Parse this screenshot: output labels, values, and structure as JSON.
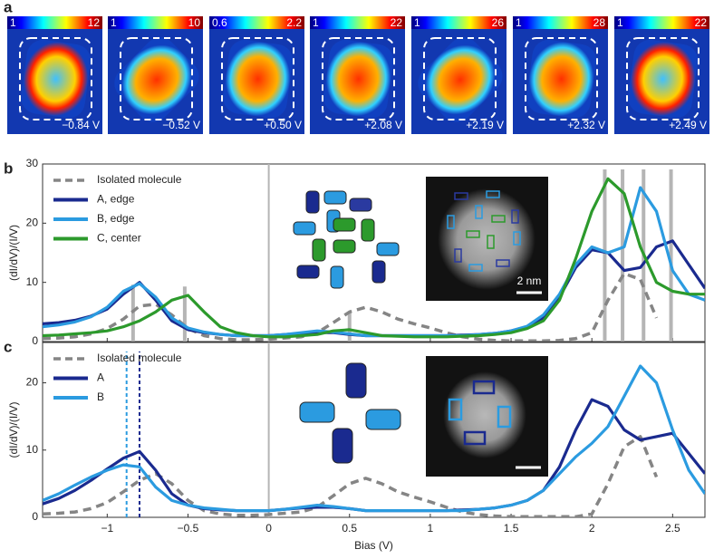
{
  "panel_a": {
    "letter": "a",
    "maps": [
      {
        "cbar_min": 1,
        "cbar_max": 12,
        "bias": -0.84,
        "bias_label": "−0.84 V"
      },
      {
        "cbar_min": 1,
        "cbar_max": 10,
        "bias": -0.52,
        "bias_label": "−0.52 V"
      },
      {
        "cbar_min": 0.6,
        "cbar_max": 2.2,
        "bias": 0.5,
        "bias_label": "+0.50 V"
      },
      {
        "cbar_min": 1,
        "cbar_max": 22,
        "bias": 2.08,
        "bias_label": "+2.08 V"
      },
      {
        "cbar_min": 1,
        "cbar_max": 26,
        "bias": 2.19,
        "bias_label": "+2.19 V"
      },
      {
        "cbar_min": 1,
        "cbar_max": 28,
        "bias": 2.32,
        "bias_label": "+2.32 V"
      },
      {
        "cbar_min": 1,
        "cbar_max": 22,
        "bias": 2.49,
        "bias_label": "+2.49 V"
      }
    ]
  },
  "insets": {
    "scale_label": "2 nm"
  },
  "chart_data": [
    {
      "type": "line",
      "letter": "b",
      "ylabel": "(dI/dV)/(I/V)",
      "legend": "upper left",
      "x": [
        -1.4,
        -1.3,
        -1.2,
        -1.1,
        -1.0,
        -0.9,
        -0.8,
        -0.7,
        -0.6,
        -0.5,
        -0.4,
        -0.3,
        -0.2,
        -0.1,
        0,
        0.1,
        0.2,
        0.3,
        0.4,
        0.5,
        0.6,
        0.7,
        0.8,
        0.9,
        1.0,
        1.1,
        1.2,
        1.3,
        1.4,
        1.5,
        1.6,
        1.7,
        1.8,
        1.9,
        2.0,
        2.1,
        2.2,
        2.3,
        2.4,
        2.5,
        2.6,
        2.7
      ],
      "xlim": [
        -1.4,
        2.7
      ],
      "xticks": [
        -1,
        -0.5,
        0,
        0.5,
        1,
        1.5,
        2,
        2.5
      ],
      "ylim": [
        0,
        30
      ],
      "yticks": [
        0,
        10,
        20,
        30
      ],
      "series": [
        {
          "name": "Isolated molecule",
          "color": "#858585",
          "dashed": true,
          "values": [
            0.5,
            0.6,
            0.8,
            1.3,
            2.2,
            3.8,
            6.0,
            6.3,
            4.5,
            2.2,
            1.0,
            0.5,
            0.3,
            0.3,
            0.4,
            0.6,
            0.8,
            1.5,
            3.2,
            5.0,
            5.8,
            5.0,
            3.8,
            3.0,
            2.3,
            1.5,
            0.8,
            0.4,
            0.2,
            0.1,
            0.1,
            0.1,
            0.2,
            0.5,
            1.5,
            7.0,
            11.5,
            10.5,
            4.0,
            null,
            null,
            null
          ]
        },
        {
          "name": "A, edge",
          "color": "#1a2a8f",
          "values": [
            3.0,
            3.2,
            3.6,
            4.3,
            5.5,
            8.0,
            10.0,
            7.0,
            3.5,
            2.0,
            1.5,
            1.2,
            1.0,
            1.0,
            1.0,
            1.2,
            1.4,
            1.5,
            1.5,
            1.2,
            1.0,
            1.0,
            1.0,
            1.0,
            1.0,
            1.0,
            1.1,
            1.2,
            1.4,
            1.8,
            2.5,
            4.0,
            7.5,
            12.5,
            15.5,
            15.0,
            12.0,
            12.5,
            16.0,
            17.0,
            13.0,
            9.0
          ]
        },
        {
          "name": "B, edge",
          "color": "#2b9be0",
          "values": [
            2.5,
            2.8,
            3.3,
            4.2,
            5.8,
            8.5,
            9.8,
            7.5,
            4.0,
            2.3,
            1.6,
            1.2,
            1.0,
            1.0,
            1.0,
            1.2,
            1.5,
            1.8,
            1.6,
            1.3,
            1.0,
            1.0,
            1.0,
            1.0,
            1.0,
            1.0,
            1.0,
            1.2,
            1.4,
            1.8,
            2.6,
            4.5,
            8.0,
            13.0,
            16.0,
            15.0,
            16.0,
            26.0,
            22.0,
            12.0,
            8.0,
            7.0
          ]
        },
        {
          "name": "C, center",
          "color": "#2c9a2c",
          "values": [
            1.0,
            1.1,
            1.3,
            1.5,
            1.8,
            2.5,
            3.5,
            5.0,
            7.0,
            7.8,
            5.0,
            2.5,
            1.5,
            1.0,
            0.8,
            0.8,
            1.0,
            1.2,
            1.8,
            2.0,
            1.5,
            1.0,
            0.9,
            0.8,
            0.8,
            0.8,
            0.9,
            1.0,
            1.2,
            1.5,
            2.2,
            3.5,
            7.0,
            14.0,
            22.0,
            27.5,
            25.0,
            16.0,
            10.0,
            8.5,
            8.0,
            8.0
          ]
        }
      ]
    },
    {
      "type": "line",
      "letter": "c",
      "ylabel": "(dI/dV)/(I/V)",
      "xlabel": "Bias (V)",
      "legend": "upper left",
      "x": [
        -1.4,
        -1.3,
        -1.2,
        -1.1,
        -1.0,
        -0.9,
        -0.8,
        -0.7,
        -0.6,
        -0.5,
        -0.4,
        -0.3,
        -0.2,
        -0.1,
        0,
        0.1,
        0.2,
        0.3,
        0.4,
        0.5,
        0.6,
        0.7,
        0.8,
        0.9,
        1.0,
        1.1,
        1.2,
        1.3,
        1.4,
        1.5,
        1.6,
        1.7,
        1.8,
        1.9,
        2.0,
        2.1,
        2.2,
        2.3,
        2.4,
        2.5,
        2.6,
        2.7
      ],
      "xlim": [
        -1.4,
        2.7
      ],
      "xticks": [
        {
          "value": -1,
          "label": "−1"
        },
        {
          "value": -0.5,
          "label": "−0.5"
        },
        0,
        0.5,
        1,
        1.5,
        2,
        2.5
      ],
      "ylim": [
        0,
        26
      ],
      "yticks": [
        0,
        10,
        20
      ],
      "peak_markers": [
        {
          "value": -0.88,
          "color": "#2b9be0"
        },
        {
          "value": -0.8,
          "color": "#1a2a8f"
        }
      ],
      "series": [
        {
          "name": "Isolated molecule",
          "color": "#858585",
          "dashed": true,
          "values": [
            0.5,
            0.6,
            0.8,
            1.3,
            2.2,
            3.8,
            5.5,
            6.5,
            5.0,
            2.5,
            1.0,
            0.5,
            0.3,
            0.3,
            0.4,
            0.6,
            0.8,
            1.5,
            3.2,
            5.0,
            5.8,
            5.0,
            3.8,
            3.0,
            2.3,
            1.5,
            0.8,
            0.4,
            0.2,
            0.1,
            0.1,
            0.1,
            0.1,
            0.1,
            0.5,
            5.0,
            10.5,
            12.0,
            6.0,
            null,
            null,
            null
          ]
        },
        {
          "name": "A",
          "color": "#1a2a8f",
          "values": [
            2.0,
            2.8,
            4.0,
            5.5,
            7.2,
            8.8,
            9.8,
            7.0,
            3.5,
            1.8,
            1.3,
            1.1,
            1.0,
            1.0,
            1.0,
            1.2,
            1.4,
            1.5,
            1.5,
            1.3,
            1.0,
            1.0,
            1.0,
            1.0,
            1.0,
            1.0,
            1.1,
            1.2,
            1.4,
            1.8,
            2.5,
            4.0,
            7.5,
            13.0,
            17.5,
            16.5,
            13.0,
            11.5,
            12.0,
            12.5,
            9.5,
            6.5
          ]
        },
        {
          "name": "B",
          "color": "#2b9be0",
          "values": [
            2.5,
            3.5,
            4.8,
            6.0,
            7.0,
            7.8,
            7.5,
            4.5,
            2.5,
            1.8,
            1.4,
            1.2,
            1.0,
            1.0,
            1.0,
            1.2,
            1.5,
            1.8,
            1.6,
            1.3,
            1.0,
            1.0,
            1.0,
            1.0,
            1.0,
            1.0,
            1.0,
            1.2,
            1.4,
            1.8,
            2.5,
            4.0,
            6.5,
            9.0,
            11.0,
            13.5,
            18.0,
            22.5,
            20.0,
            13.0,
            7.0,
            3.5
          ]
        }
      ]
    }
  ]
}
